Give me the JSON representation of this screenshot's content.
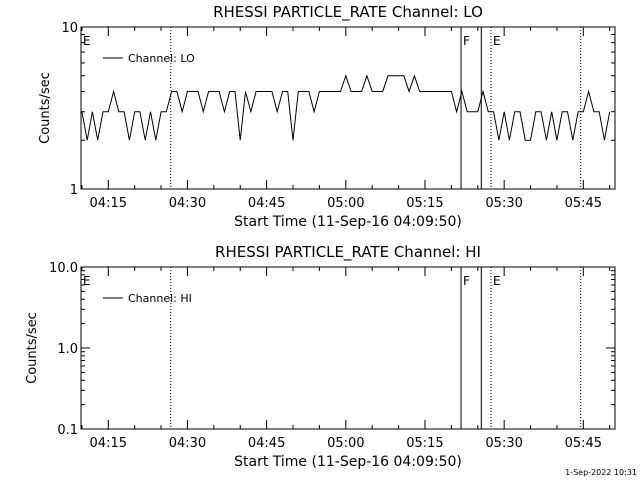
{
  "footer_date": "1-Sep-2022 10:31",
  "chart_data": [
    {
      "type": "line",
      "title": "RHESSI PARTICLE_RATE Channel: LO",
      "xlabel": "Start Time (11-Sep-16 04:09:50)",
      "ylabel": "Counts/sec",
      "yscale": "log",
      "ylim": [
        1,
        10
      ],
      "y_ticks": [
        1,
        10
      ],
      "y_tick_labels": [
        "1",
        "10"
      ],
      "xlim": [
        "04:09:50",
        "05:51:00"
      ],
      "x_ticks": [
        "04:15",
        "04:30",
        "04:45",
        "05:00",
        "05:15",
        "05:30",
        "05:45"
      ],
      "x_tick_labels": [
        "04:15",
        "04:30",
        "04:45",
        "05:00",
        "05:15",
        "05:30",
        "05:45"
      ],
      "grid": false,
      "legend": "top-left",
      "series": [
        {
          "name": "Channel: LO",
          "x": [
            "04:10",
            "04:11",
            "04:12",
            "04:13",
            "04:14",
            "04:15",
            "04:16",
            "04:17",
            "04:18",
            "04:19",
            "04:20",
            "04:21",
            "04:22",
            "04:23",
            "04:24",
            "04:25",
            "04:26",
            "04:27",
            "04:28",
            "04:29",
            "04:30",
            "04:31",
            "04:32",
            "04:33",
            "04:34",
            "04:35",
            "04:36",
            "04:37",
            "04:38",
            "04:39",
            "04:40",
            "04:41",
            "04:42",
            "04:43",
            "04:44",
            "04:45",
            "04:46",
            "04:47",
            "04:48",
            "04:49",
            "04:50",
            "04:51",
            "04:52",
            "04:53",
            "04:54",
            "04:55",
            "04:56",
            "04:57",
            "04:58",
            "04:59",
            "05:00",
            "05:01",
            "05:02",
            "05:03",
            "05:04",
            "05:05",
            "05:06",
            "05:07",
            "05:08",
            "05:09",
            "05:10",
            "05:11",
            "05:12",
            "05:13",
            "05:14",
            "05:15",
            "05:16",
            "05:17",
            "05:18",
            "05:19",
            "05:20",
            "05:21",
            "05:22",
            "05:23",
            "05:24",
            "05:25",
            "05:26",
            "05:27",
            "05:28",
            "05:29",
            "05:30",
            "05:31",
            "05:32",
            "05:33",
            "05:34",
            "05:35",
            "05:36",
            "05:37",
            "05:38",
            "05:39",
            "05:40",
            "05:41",
            "05:42",
            "05:43",
            "05:44",
            "05:45",
            "05:46",
            "05:47",
            "05:48",
            "05:49",
            "05:50"
          ],
          "y": [
            3,
            2,
            3,
            2,
            3,
            3,
            4,
            3,
            3,
            2,
            3,
            3,
            2,
            3,
            2,
            3,
            3,
            4,
            4,
            3,
            4,
            4,
            4,
            3,
            4,
            4,
            4,
            3,
            4,
            4,
            2,
            4,
            3,
            4,
            4,
            4,
            4,
            3,
            4,
            4,
            2,
            4,
            4,
            4,
            3,
            4,
            4,
            4,
            4,
            4,
            5,
            4,
            4,
            4,
            5,
            4,
            4,
            4,
            5,
            5,
            5,
            5,
            4,
            5,
            4,
            4,
            4,
            4,
            4,
            4,
            4,
            3,
            4,
            3,
            3,
            3,
            4,
            3,
            3,
            2,
            3,
            2,
            3,
            3,
            2,
            2,
            3,
            3,
            2,
            3,
            2,
            3,
            3,
            2,
            3,
            3,
            4,
            3,
            3,
            2,
            3
          ]
        }
      ],
      "annotations": [
        {
          "label": "E",
          "x": "04:09:50",
          "style": "none"
        },
        {
          "label": "",
          "x": "04:26:50",
          "style": "dotted"
        },
        {
          "label": "F",
          "x": "05:21:50",
          "style": "solid"
        },
        {
          "label": "",
          "x": "05:25:40",
          "style": "solid"
        },
        {
          "label": "E",
          "x": "05:27:30",
          "style": "dotted"
        },
        {
          "label": "",
          "x": "05:44:30",
          "style": "dotted"
        }
      ]
    },
    {
      "type": "line",
      "title": "RHESSI PARTICLE_RATE Channel: HI",
      "xlabel": "Start Time (11-Sep-16 04:09:50)",
      "ylabel": "Counts/sec",
      "yscale": "log",
      "ylim": [
        0.1,
        10
      ],
      "y_ticks": [
        0.1,
        1,
        10
      ],
      "y_tick_labels": [
        "0.1",
        "1.0",
        "10.0"
      ],
      "xlim": [
        "04:09:50",
        "05:51:00"
      ],
      "x_ticks": [
        "04:15",
        "04:30",
        "04:45",
        "05:00",
        "05:15",
        "05:30",
        "05:45"
      ],
      "x_tick_labels": [
        "04:15",
        "04:30",
        "04:45",
        "05:00",
        "05:15",
        "05:30",
        "05:45"
      ],
      "grid": false,
      "legend": "top-left",
      "series": [
        {
          "name": "Channel: HI",
          "x": [],
          "y": []
        }
      ],
      "annotations": [
        {
          "label": "E",
          "x": "04:09:50",
          "style": "none"
        },
        {
          "label": "",
          "x": "04:26:50",
          "style": "dotted"
        },
        {
          "label": "F",
          "x": "05:21:50",
          "style": "solid"
        },
        {
          "label": "",
          "x": "05:25:40",
          "style": "solid"
        },
        {
          "label": "E",
          "x": "05:27:30",
          "style": "dotted"
        },
        {
          "label": "",
          "x": "05:44:30",
          "style": "dotted"
        }
      ]
    }
  ]
}
